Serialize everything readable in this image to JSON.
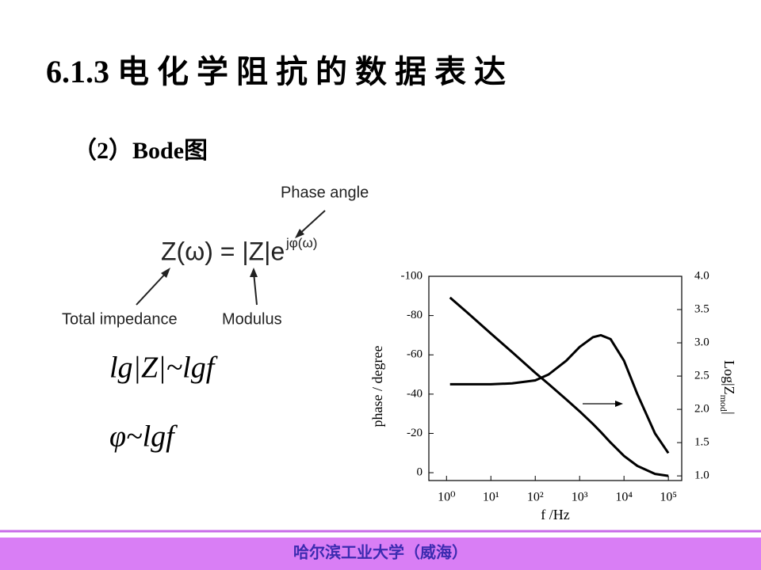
{
  "slide": {
    "title": "6.1.3 电 化 学 阻 抗 的 数 据 表 达",
    "subtitle": "（2）Bode图",
    "diagram": {
      "formula": "Z(ω) = |Z|e",
      "formula_sup": "jφ(ω)",
      "phase_angle": "Phase angle",
      "total_impedance": "Total impedance",
      "modulus": "Modulus"
    },
    "relation1": "lg|Z|~lgf",
    "relation2": "φ~lgf",
    "footer": "哈尔滨工业大学（威海）"
  },
  "chart_data": {
    "type": "line",
    "xlabel": "f /Hz",
    "ylabel": "phase / degree",
    "y2label": "Log|Z",
    "y2label_sub": "mod",
    "y2label_end": "|",
    "log_x": true,
    "x": [
      1.2,
      3,
      10,
      30,
      100,
      200,
      500,
      1000,
      2000,
      3000,
      5000,
      10000,
      20000,
      50000,
      100000
    ],
    "series": [
      {
        "name": "phase",
        "color": "#000000",
        "values": [
          -45,
          -45,
          -45,
          -45.5,
          -47,
          -50,
          -57,
          -64,
          -69,
          -70,
          -68,
          -57,
          -40,
          -20,
          -10
        ]
      },
      {
        "name": "Log|Z|",
        "color": "#000000",
        "axis": "y2",
        "values": [
          3.68,
          3.45,
          3.14,
          2.86,
          2.55,
          2.38,
          2.15,
          1.97,
          1.78,
          1.66,
          1.5,
          1.3,
          1.15,
          1.03,
          1.0
        ]
      }
    ],
    "xlim": [
      0.4,
      200000
    ],
    "xticks": [
      {
        "value": 1,
        "label": "10⁰"
      },
      {
        "value": 10,
        "label": "10¹"
      },
      {
        "value": 100,
        "label": "10²"
      },
      {
        "value": 1000,
        "label": "10³"
      },
      {
        "value": 10000,
        "label": "10⁴"
      },
      {
        "value": 100000,
        "label": "10⁵"
      }
    ],
    "ylim": [
      4,
      -100
    ],
    "yticks": [
      -100,
      -80,
      -60,
      -40,
      -20,
      0
    ],
    "y2lim": [
      0.93,
      4.0
    ],
    "y2ticks": [
      {
        "value": 4,
        "label": "4.0"
      },
      {
        "value": 3.5,
        "label": "3.5"
      },
      {
        "value": 3,
        "label": "3.0"
      },
      {
        "value": 2.5,
        "label": "2.5"
      },
      {
        "value": 2,
        "label": "2.0"
      },
      {
        "value": 1.5,
        "label": "1.5"
      },
      {
        "value": 1,
        "label": "1.0"
      }
    ]
  }
}
